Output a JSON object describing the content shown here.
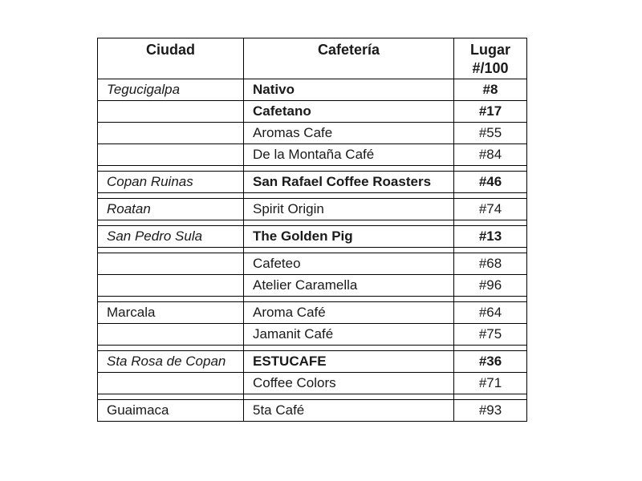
{
  "page": {
    "background_color": "#ffffff",
    "text_color": "#1a1a1a",
    "border_color": "#000000"
  },
  "table": {
    "headers": {
      "ciudad": "Ciudad",
      "cafeteria": "Cafetería",
      "lugar": "Lugar #/100"
    },
    "rows": [
      {
        "type": "data",
        "ciudad": "Tegucigalpa",
        "ciudad_italic": true,
        "cafeteria": "Nativo",
        "lugar": "#8",
        "bold": true
      },
      {
        "type": "data",
        "ciudad": "",
        "ciudad_italic": false,
        "cafeteria": "Cafetano",
        "lugar": "#17",
        "bold": true
      },
      {
        "type": "data",
        "ciudad": "",
        "ciudad_italic": false,
        "cafeteria": "Aromas Cafe",
        "lugar": "#55",
        "bold": false
      },
      {
        "type": "data",
        "ciudad": "",
        "ciudad_italic": false,
        "cafeteria": "De la Montaña Café",
        "lugar": "#84",
        "bold": false
      },
      {
        "type": "spacer"
      },
      {
        "type": "data",
        "ciudad": "Copan Ruinas",
        "ciudad_italic": true,
        "cafeteria": "San Rafael Coffee Roasters",
        "lugar": "#46",
        "bold": true
      },
      {
        "type": "spacer"
      },
      {
        "type": "data",
        "ciudad": "Roatan",
        "ciudad_italic": true,
        "cafeteria": "Spirit Origin",
        "lugar": "#74",
        "bold": false
      },
      {
        "type": "spacer"
      },
      {
        "type": "data",
        "ciudad": "San Pedro Sula",
        "ciudad_italic": true,
        "cafeteria": "The Golden Pig",
        "lugar": "#13",
        "bold": true
      },
      {
        "type": "spacer"
      },
      {
        "type": "data",
        "ciudad": "",
        "ciudad_italic": false,
        "cafeteria": "Cafeteo",
        "lugar": "#68",
        "bold": false
      },
      {
        "type": "data",
        "ciudad": "",
        "ciudad_italic": false,
        "cafeteria": "Atelier Caramella",
        "lugar": "#96",
        "bold": false
      },
      {
        "type": "spacer"
      },
      {
        "type": "data",
        "ciudad": "Marcala",
        "ciudad_italic": false,
        "cafeteria": "Aroma Café",
        "lugar": "#64",
        "bold": false
      },
      {
        "type": "data",
        "ciudad": "",
        "ciudad_italic": false,
        "cafeteria": "Jamanit Café",
        "lugar": "#75",
        "bold": false
      },
      {
        "type": "spacer"
      },
      {
        "type": "data",
        "ciudad": "Sta Rosa de Copan",
        "ciudad_italic": true,
        "cafeteria": "ESTUCAFE",
        "lugar": "#36",
        "bold": true
      },
      {
        "type": "data",
        "ciudad": "",
        "ciudad_italic": false,
        "cafeteria": "Coffee Colors",
        "lugar": "#71",
        "bold": false
      },
      {
        "type": "spacer"
      },
      {
        "type": "data",
        "ciudad": "Guaimaca",
        "ciudad_italic": false,
        "cafeteria": "5ta Café",
        "lugar": "#93",
        "bold": false
      }
    ]
  }
}
